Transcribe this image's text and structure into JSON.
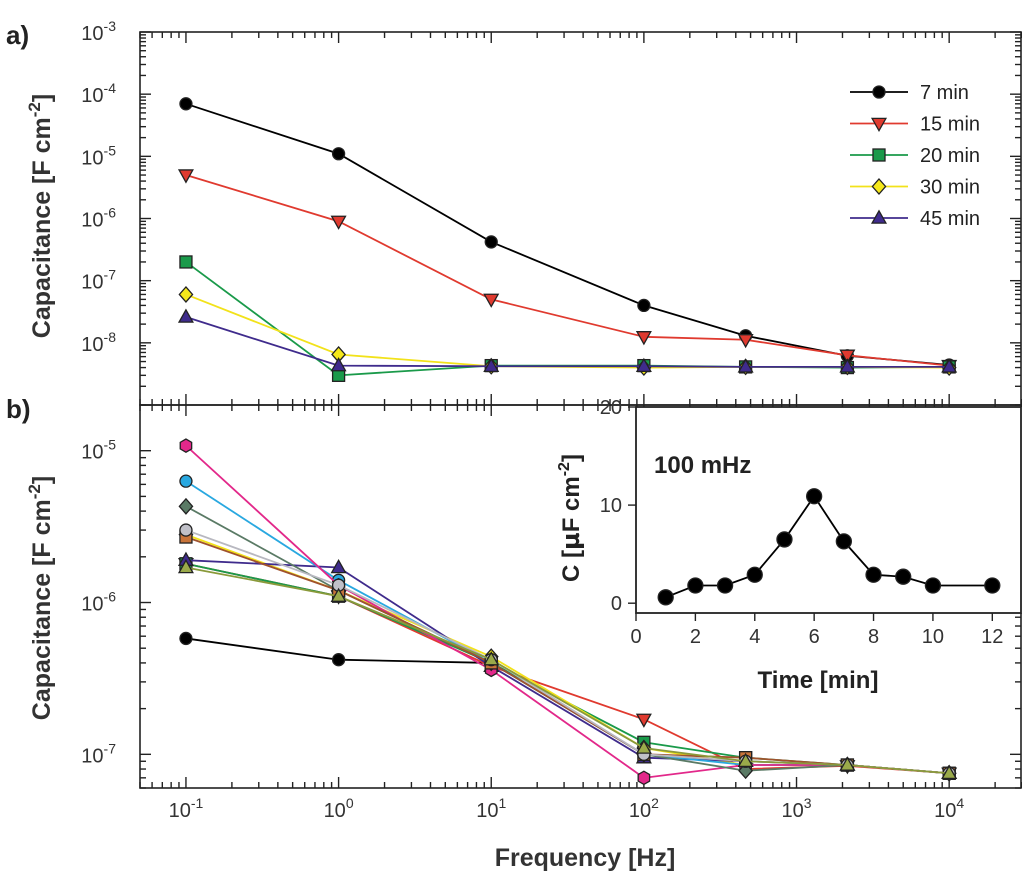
{
  "chart_data": [
    {
      "panel_label": "a)",
      "type": "line",
      "ylabel": "Capacitance [F cm",
      "ylabel_sup": "-2",
      "ylabel_close": "]",
      "yscale": "log",
      "xscale": "log",
      "ylim": [
        1e-09,
        0.001
      ],
      "xlim": [
        0.05,
        30000
      ],
      "yticks": [
        {
          "value": 1e-08,
          "base": "10",
          "exp": "-8"
        },
        {
          "value": 1e-07,
          "base": "10",
          "exp": "-7"
        },
        {
          "value": 1e-06,
          "base": "10",
          "exp": "-6"
        },
        {
          "value": 1e-05,
          "base": "10",
          "exp": "-5"
        },
        {
          "value": 0.0001,
          "base": "10",
          "exp": "-4"
        },
        {
          "value": 0.001,
          "base": "10",
          "exp": "-3"
        }
      ],
      "legend_position": "top-right",
      "series": [
        {
          "name": "7 min",
          "color": "#000000",
          "fill": "#000000",
          "marker": "circle",
          "x": [
            0.1,
            1,
            10,
            100,
            464,
            2154,
            10000
          ],
          "y": [
            7e-05,
            1.1e-05,
            4.2e-07,
            4e-08,
            1.3e-08,
            6.2e-09,
            4.4e-09
          ]
        },
        {
          "name": "15 min",
          "color": "#e03a2f",
          "fill": "#e03a2f",
          "marker": "triangle-down",
          "x": [
            0.1,
            1,
            10,
            100,
            464,
            2154,
            10000
          ],
          "y": [
            5e-06,
            9e-07,
            5e-08,
            1.25e-08,
            1.12e-08,
            6.3e-09,
            4.3e-09
          ]
        },
        {
          "name": "20 min",
          "color": "#1a9a4a",
          "fill": "#1a9a4a",
          "marker": "square",
          "x": [
            0.1,
            1,
            10,
            100,
            464,
            2154,
            10000
          ],
          "y": [
            2e-07,
            3e-09,
            4.3e-09,
            4.3e-09,
            4.1e-09,
            4e-09,
            4.1e-09
          ]
        },
        {
          "name": "30 min",
          "color": "#f2e21a",
          "fill": "#f5e81a",
          "marker": "diamond",
          "x": [
            0.1,
            1,
            10,
            100,
            464,
            2154,
            10000
          ],
          "y": [
            6e-08,
            6.5e-09,
            4.2e-09,
            4e-09,
            4.1e-09,
            4.1e-09,
            4e-09
          ]
        },
        {
          "name": "45 min",
          "color": "#3f2b8c",
          "fill": "#3f2b8c",
          "marker": "triangle-up",
          "x": [
            0.1,
            1,
            10,
            100,
            464,
            2154,
            10000
          ],
          "y": [
            2.6e-08,
            4.3e-09,
            4.2e-09,
            4.2e-09,
            4.1e-09,
            4.1e-09,
            4.1e-09
          ]
        }
      ]
    },
    {
      "panel_label": "b)",
      "type": "line",
      "xlabel": "Frequency [Hz]",
      "ylabel": "Capacitance [F cm",
      "ylabel_sup": "-2",
      "ylabel_close": "]",
      "yscale": "log",
      "xscale": "log",
      "ylim": [
        6e-08,
        2e-05
      ],
      "xlim": [
        0.05,
        30000
      ],
      "xticks": [
        {
          "value": 0.1,
          "base": "10",
          "exp": "-1"
        },
        {
          "value": 1,
          "base": "10",
          "exp": "0"
        },
        {
          "value": 10,
          "base": "10",
          "exp": "1"
        },
        {
          "value": 100,
          "base": "10",
          "exp": "2"
        },
        {
          "value": 1000,
          "base": "10",
          "exp": "3"
        },
        {
          "value": 10000,
          "base": "10",
          "exp": "4"
        }
      ],
      "yticks": [
        {
          "value": 1e-07,
          "base": "10",
          "exp": "-7"
        },
        {
          "value": 1e-06,
          "base": "10",
          "exp": "-6"
        },
        {
          "value": 1e-05,
          "base": "10",
          "exp": "-5"
        }
      ],
      "series": [
        {
          "color": "#000000",
          "fill": "#000000",
          "marker": "circle",
          "x": [
            0.1,
            1,
            10
          ],
          "y": [
            5.8e-07,
            4.2e-07,
            4e-07
          ]
        },
        {
          "color": "#e03a2f",
          "fill": "#e03a2f",
          "marker": "triangle-down",
          "x": [
            0.1,
            1,
            10,
            100,
            464,
            2154,
            10000
          ],
          "y": [
            1.8e-06,
            1.1e-06,
            3.8e-07,
            1.7e-07,
            8e-08,
            8.4e-08,
            7.5e-08
          ]
        },
        {
          "color": "#1a9a4a",
          "fill": "#1a9a4a",
          "marker": "square",
          "x": [
            0.1,
            1,
            10,
            100,
            464,
            2154,
            10000
          ],
          "y": [
            1.8e-06,
            1.1e-06,
            4e-07,
            1.2e-07,
            9.5e-08,
            8.5e-08,
            7.5e-08
          ]
        },
        {
          "color": "#f2e21a",
          "fill": "#f5e81a",
          "marker": "diamond",
          "x": [
            0.1,
            1,
            10,
            100,
            464,
            2154,
            10000
          ],
          "y": [
            2.8e-06,
            1.2e-06,
            4.4e-07,
            1.1e-07,
            8.5e-08,
            8.5e-08,
            7.5e-08
          ]
        },
        {
          "color": "#3f2b8c",
          "fill": "#3f2b8c",
          "marker": "triangle-up",
          "x": [
            0.1,
            1,
            10,
            100,
            464,
            2154,
            10000
          ],
          "y": [
            1.9e-06,
            1.7e-06,
            3.8e-07,
            9.5e-08,
            9e-08,
            8.5e-08,
            7.5e-08
          ]
        },
        {
          "color": "#29a8e0",
          "fill": "#29a8e0",
          "marker": "circle",
          "x": [
            0.1,
            1,
            10,
            100,
            464,
            2154,
            10000
          ],
          "y": [
            6.3e-06,
            1.4e-06,
            4e-07,
            1e-07,
            8.5e-08,
            8.5e-08,
            7.5e-08
          ]
        },
        {
          "color": "#e2288a",
          "fill": "#e2288a",
          "marker": "hexagon",
          "x": [
            0.1,
            1,
            10,
            100,
            464,
            2154,
            10000
          ],
          "y": [
            1.08e-05,
            1.3e-06,
            3.6e-07,
            7e-08,
            8.5e-08,
            8.5e-08,
            7.5e-08
          ]
        },
        {
          "color": "#5a7a65",
          "fill": "#5a7a65",
          "marker": "diamond",
          "x": [
            0.1,
            1,
            10,
            100,
            464,
            2154,
            10000
          ],
          "y": [
            4.3e-06,
            1.2e-06,
            4e-07,
            1e-07,
            7.8e-08,
            8.5e-08,
            7.5e-08
          ]
        },
        {
          "color": "#a0522d",
          "fill": "#c8743a",
          "marker": "square",
          "x": [
            0.1,
            1,
            10,
            100,
            464,
            2154,
            10000
          ],
          "y": [
            2.7e-06,
            1.2e-06,
            4e-07,
            1e-07,
            9.5e-08,
            8.5e-08,
            7.5e-08
          ]
        },
        {
          "color": "#b8b8c0",
          "fill": "#c0c0c8",
          "marker": "circle",
          "x": [
            0.1,
            1,
            10,
            100,
            464,
            2154,
            10000
          ],
          "y": [
            3e-06,
            1.3e-06,
            4.2e-07,
            1e-07,
            9e-08,
            8.5e-08,
            7.5e-08
          ]
        },
        {
          "color": "#8a9a3a",
          "fill": "#9aaa4a",
          "marker": "triangle-up",
          "x": [
            0.1,
            1,
            10,
            100,
            464,
            2154,
            10000
          ],
          "y": [
            1.7e-06,
            1.1e-06,
            4.2e-07,
            1.1e-07,
            9e-08,
            8.5e-08,
            7.5e-08
          ]
        }
      ]
    },
    {
      "panel_label": "inset",
      "type": "line",
      "title": "100 mHz",
      "xlabel": "Time [min]",
      "ylabel": "C [",
      "ylabel_mu": "µ",
      "ylabel_rest": "F cm",
      "ylabel_sup": "-2",
      "ylabel_close": "]",
      "xlim": [
        0,
        13
      ],
      "ylim": [
        -1,
        20
      ],
      "xticks": [
        0,
        2,
        4,
        6,
        8,
        10,
        12
      ],
      "yticks": [
        0,
        10,
        20
      ],
      "series": [
        {
          "color": "#000000",
          "fill": "#000000",
          "marker": "circle",
          "x": [
            1,
            2,
            3,
            4,
            5,
            6,
            7,
            8,
            9,
            10,
            12
          ],
          "y": [
            0.6,
            1.8,
            1.8,
            2.9,
            6.5,
            10.9,
            6.3,
            2.9,
            2.7,
            1.8,
            1.8
          ]
        }
      ]
    }
  ]
}
